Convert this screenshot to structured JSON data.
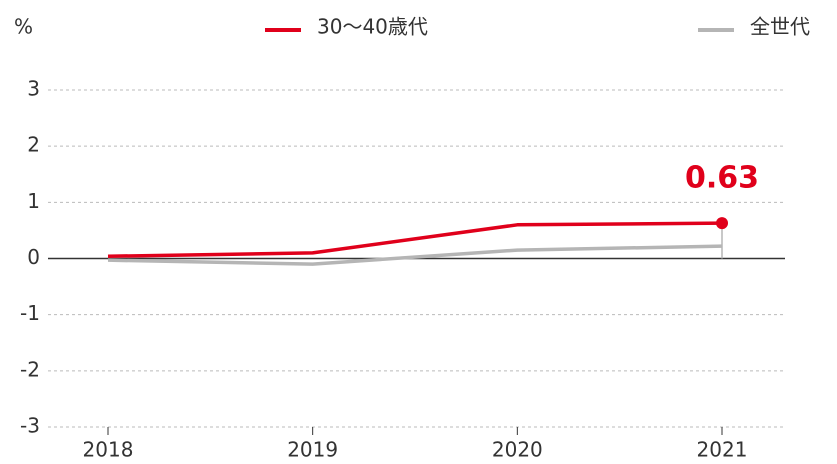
{
  "chart_data": {
    "type": "line",
    "y_label": "%",
    "categories": [
      "2018",
      "2019",
      "2020",
      "2021"
    ],
    "series": [
      {
        "name": "30〜40歳代",
        "color": "#e0001b",
        "values": [
          0.04,
          0.1,
          0.6,
          0.63
        ]
      },
      {
        "name": "全世代",
        "color": "#b5b5b5",
        "values": [
          -0.03,
          -0.1,
          0.15,
          0.22
        ]
      }
    ],
    "ylim": [
      -3,
      3
    ],
    "yticks": [
      -3,
      -2,
      -1,
      0,
      1,
      2,
      3
    ],
    "grid": true
  }
}
